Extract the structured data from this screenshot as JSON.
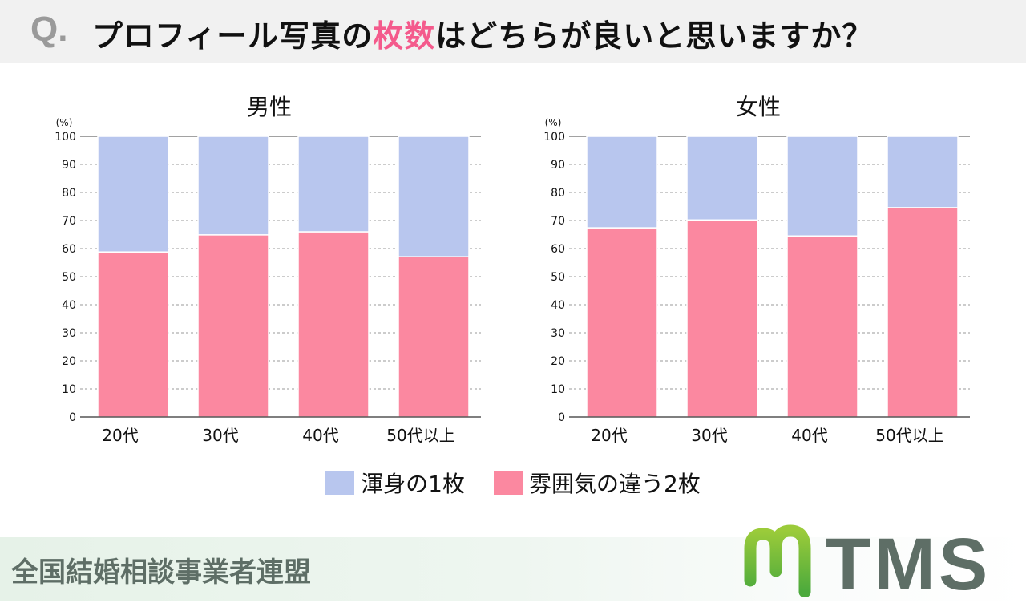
{
  "header": {
    "q_mark": "Q.",
    "title_pre": "プロフィール写真の",
    "title_highlight": "枚数",
    "title_post": "はどちらが良いと思いますか？"
  },
  "colors": {
    "one_photo": "#b8c6ee",
    "two_photos": "#fb88a0",
    "highlight": "#f45a8c"
  },
  "legend": {
    "items": [
      "渾身の1枚",
      "雰囲気の違う2枚"
    ]
  },
  "footer": {
    "org": "全国結婚相談事業者連盟",
    "logo_text": "TMS"
  },
  "chart_data": [
    {
      "type": "bar",
      "stacked": true,
      "title": "男性",
      "ylabel": "(%)",
      "ylim": [
        0,
        100
      ],
      "yticks": [
        0,
        10,
        20,
        30,
        40,
        50,
        60,
        70,
        80,
        90,
        100
      ],
      "grid": true,
      "categories": [
        "20代",
        "30代",
        "40代",
        "50代以上"
      ],
      "series": [
        {
          "name": "雰囲気の違う2枚",
          "values": [
            58.8,
            64.9,
            66.0,
            57.1
          ]
        },
        {
          "name": "渾身の1枚",
          "values": [
            41.2,
            35.1,
            34.0,
            42.9
          ]
        }
      ]
    },
    {
      "type": "bar",
      "stacked": true,
      "title": "女性",
      "ylabel": "(%)",
      "ylim": [
        0,
        100
      ],
      "yticks": [
        0,
        10,
        20,
        30,
        40,
        50,
        60,
        70,
        80,
        90,
        100
      ],
      "grid": true,
      "categories": [
        "20代",
        "30代",
        "40代",
        "50代以上"
      ],
      "series": [
        {
          "name": "雰囲気の違う2枚",
          "values": [
            67.4,
            70.2,
            64.5,
            74.6
          ]
        },
        {
          "name": "渾身の1枚",
          "values": [
            32.6,
            29.8,
            35.5,
            25.4
          ]
        }
      ]
    }
  ]
}
